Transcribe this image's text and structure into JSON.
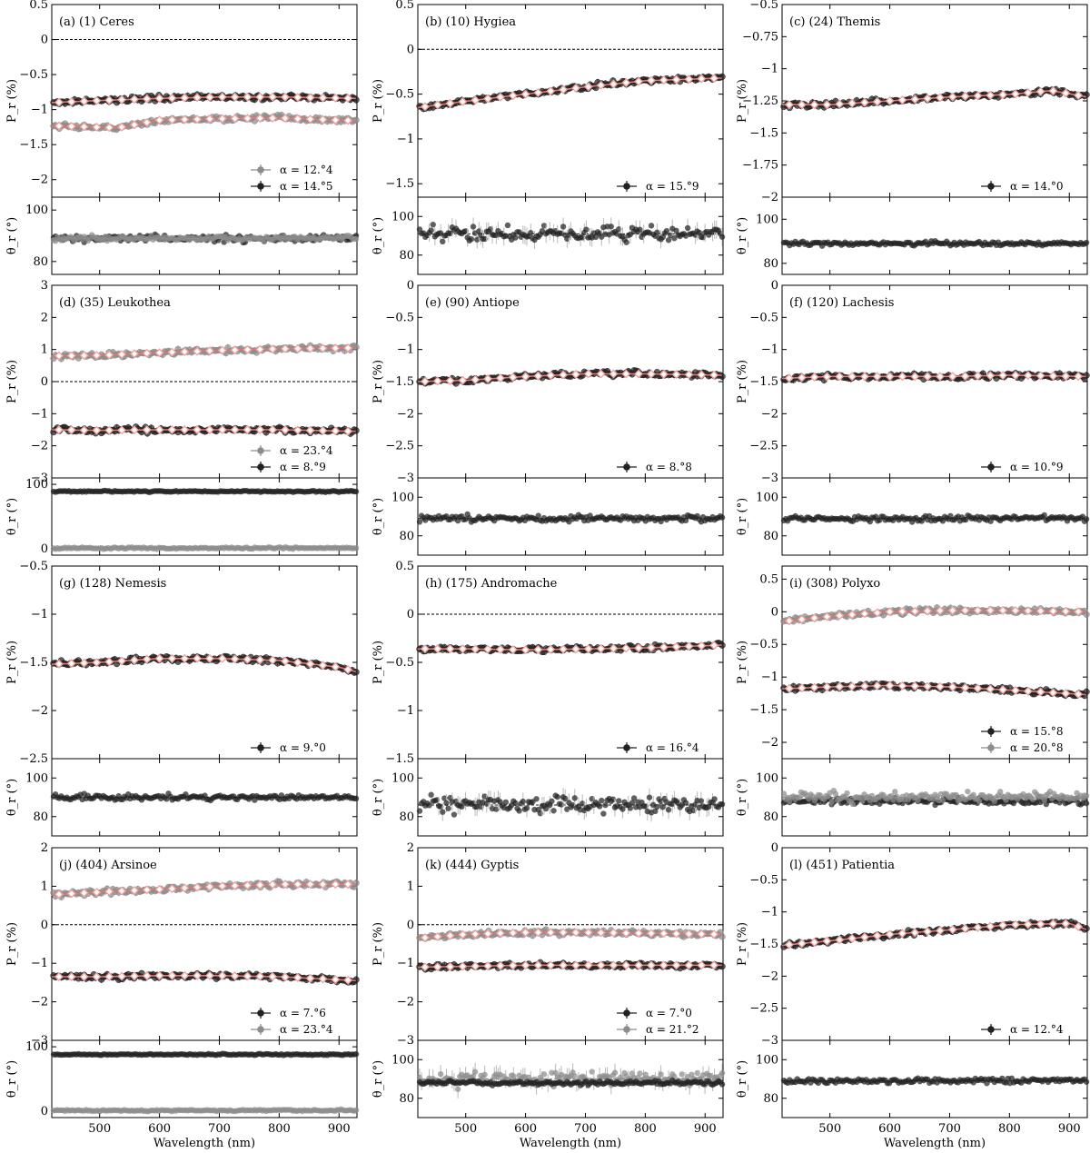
{
  "figure": {
    "xlabel": "Wavelength (nm)",
    "x_ticks": [
      500,
      600,
      700,
      800,
      900
    ],
    "xlim": [
      420,
      930
    ],
    "pr_label": "P_r (%)",
    "theta_label": "θ_r (°)"
  },
  "colors": {
    "black_series": "#222222",
    "gray_series": "#8c8c8c",
    "fit_line": "#e8736c",
    "marker": "#f4a49e"
  },
  "chart_data": [
    {
      "type": "scatter",
      "label": "(a) (1) Ceres",
      "ylim": [
        -2.25,
        0.5
      ],
      "yticks": [
        0.5,
        0.0,
        -0.5,
        -1.0,
        -1.5,
        -2.0
      ],
      "zero_line": true,
      "series": [
        {
          "name": "α = 12.°4",
          "color": "gray",
          "trend": {
            "x": [
              420,
              530,
              600,
              700,
              800,
              930
            ],
            "y": [
              -1.23,
              -1.26,
              -1.15,
              -1.13,
              -1.12,
              -1.16
            ]
          }
        },
        {
          "name": "α = 14.°5",
          "color": "black",
          "trend": {
            "x": [
              420,
              500,
              600,
              700,
              800,
              930
            ],
            "y": [
              -0.9,
              -0.87,
              -0.84,
              -0.82,
              -0.82,
              -0.84
            ]
          }
        }
      ],
      "theta": {
        "ylim": [
          75,
          105
        ],
        "yticks": [
          100,
          80
        ],
        "series": [
          {
            "color": "black",
            "mean": 89,
            "scatter": 1.2
          },
          {
            "color": "gray",
            "mean": 89,
            "scatter": 1.0
          }
        ]
      }
    },
    {
      "type": "scatter",
      "label": "(b) (10) Hygiea",
      "ylim": [
        -1.65,
        0.5
      ],
      "yticks": [
        0.5,
        0.0,
        -0.5,
        -1.0,
        -1.5
      ],
      "zero_line": true,
      "series": [
        {
          "name": "α = 15.°9",
          "color": "black",
          "trend": {
            "x": [
              420,
              500,
              600,
              700,
              800,
              930
            ],
            "y": [
              -0.65,
              -0.58,
              -0.5,
              -0.42,
              -0.35,
              -0.32
            ]
          }
        }
      ],
      "theta": {
        "ylim": [
          70,
          110
        ],
        "yticks": [
          100,
          80
        ],
        "series": [
          {
            "color": "black",
            "mean": 91,
            "scatter": 3.5
          }
        ]
      }
    },
    {
      "type": "scatter",
      "label": "(c) (24) Themis",
      "ylim": [
        -2.0,
        -0.5
      ],
      "yticks": [
        -0.5,
        -0.75,
        -1.0,
        -1.25,
        -1.5,
        -1.75,
        -2.0
      ],
      "zero_line": false,
      "series": [
        {
          "name": "α = 14.°0",
          "color": "black",
          "trend": {
            "x": [
              420,
              500,
              600,
              700,
              800,
              870,
              930
            ],
            "y": [
              -1.28,
              -1.28,
              -1.25,
              -1.22,
              -1.2,
              -1.17,
              -1.22
            ]
          }
        }
      ],
      "theta": {
        "ylim": [
          75,
          110
        ],
        "yticks": [
          100,
          80
        ],
        "series": [
          {
            "color": "black",
            "mean": 89,
            "scatter": 0.8
          }
        ]
      }
    },
    {
      "type": "scatter",
      "label": "(d) (35) Leukothea",
      "ylim": [
        -3.0,
        3.0
      ],
      "yticks": [
        3,
        2,
        1,
        0,
        -1,
        -2,
        -3
      ],
      "zero_line": true,
      "series": [
        {
          "name": "α = 23.°4",
          "color": "gray",
          "trend": {
            "x": [
              420,
              500,
              600,
              700,
              800,
              930
            ],
            "y": [
              0.8,
              0.82,
              0.9,
              0.97,
              1.02,
              1.05
            ]
          }
        },
        {
          "name": "α = 8.°9",
          "color": "black",
          "trend": {
            "x": [
              420,
              500,
              600,
              700,
              800,
              930
            ],
            "y": [
              -1.5,
              -1.52,
              -1.5,
              -1.5,
              -1.5,
              -1.55
            ]
          }
        }
      ],
      "theta": {
        "ylim": [
          -10,
          110
        ],
        "yticks": [
          100,
          0
        ],
        "series": [
          {
            "color": "black",
            "mean": 89,
            "scatter": 1.0
          },
          {
            "color": "gray",
            "mean": 1,
            "scatter": 1.2
          }
        ]
      }
    },
    {
      "type": "scatter",
      "label": "(e) (90) Antiope",
      "ylim": [
        -3.0,
        0.0
      ],
      "yticks": [
        0.0,
        -0.5,
        -1.0,
        -1.5,
        -2.0,
        -2.5,
        -3.0
      ],
      "zero_line": false,
      "series": [
        {
          "name": "α = 8.°8",
          "color": "black",
          "trend": {
            "x": [
              420,
              500,
              600,
              700,
              800,
              930
            ],
            "y": [
              -1.5,
              -1.48,
              -1.42,
              -1.38,
              -1.38,
              -1.4
            ]
          }
        }
      ],
      "theta": {
        "ylim": [
          70,
          110
        ],
        "yticks": [
          100,
          80
        ],
        "series": [
          {
            "color": "black",
            "mean": 89,
            "scatter": 1.5
          }
        ]
      }
    },
    {
      "type": "scatter",
      "label": "(f) (120) Lachesis",
      "ylim": [
        -3.0,
        0.0
      ],
      "yticks": [
        0.0,
        -0.5,
        -1.0,
        -1.5,
        -2.0,
        -2.5,
        -3.0
      ],
      "zero_line": false,
      "series": [
        {
          "name": "α = 10.°9",
          "color": "black",
          "trend": {
            "x": [
              420,
              500,
              600,
              700,
              800,
              930
            ],
            "y": [
              -1.45,
              -1.42,
              -1.42,
              -1.42,
              -1.4,
              -1.42
            ]
          }
        }
      ],
      "theta": {
        "ylim": [
          70,
          110
        ],
        "yticks": [
          100,
          80
        ],
        "series": [
          {
            "color": "black",
            "mean": 89,
            "scatter": 1.3
          }
        ]
      }
    },
    {
      "type": "scatter",
      "label": "(g) (128) Nemesis",
      "ylim": [
        -2.5,
        -0.5
      ],
      "yticks": [
        -0.5,
        -1.0,
        -1.5,
        -2.0,
        -2.5
      ],
      "zero_line": false,
      "series": [
        {
          "name": "α = 9.°0",
          "color": "black",
          "trend": {
            "x": [
              420,
              500,
              600,
              700,
              800,
              900,
              930
            ],
            "y": [
              -1.52,
              -1.5,
              -1.46,
              -1.46,
              -1.48,
              -1.55,
              -1.6
            ]
          }
        }
      ],
      "theta": {
        "ylim": [
          70,
          110
        ],
        "yticks": [
          100,
          80
        ],
        "series": [
          {
            "color": "black",
            "mean": 90,
            "scatter": 1.3
          }
        ]
      }
    },
    {
      "type": "scatter",
      "label": "(h) (175) Andromache",
      "ylim": [
        -1.5,
        0.5
      ],
      "yticks": [
        0.5,
        0.0,
        -0.5,
        -1.0,
        -1.5
      ],
      "zero_line": true,
      "series": [
        {
          "name": "α = 16.°4",
          "color": "black",
          "trend": {
            "x": [
              420,
              500,
              600,
              700,
              800,
              930
            ],
            "y": [
              -0.36,
              -0.36,
              -0.37,
              -0.36,
              -0.35,
              -0.32
            ]
          }
        }
      ],
      "theta": {
        "ylim": [
          70,
          110
        ],
        "yticks": [
          100,
          80
        ],
        "series": [
          {
            "color": "black",
            "mean": 86,
            "scatter": 3.5
          }
        ]
      }
    },
    {
      "type": "scatter",
      "label": "(i) (308) Polyxo",
      "ylim": [
        -2.25,
        0.7
      ],
      "yticks": [
        0.5,
        0.0,
        -0.5,
        -1.0,
        -1.5,
        -2.0
      ],
      "zero_line": false,
      "series": [
        {
          "name": "α = 15.°8",
          "color": "black",
          "trend": {
            "x": [
              420,
              500,
              600,
              700,
              800,
              930
            ],
            "y": [
              -1.18,
              -1.15,
              -1.13,
              -1.15,
              -1.2,
              -1.27
            ]
          }
        },
        {
          "name": "α = 20.°8",
          "color": "gray",
          "trend": {
            "x": [
              420,
              500,
              600,
              700,
              800,
              930
            ],
            "y": [
              -0.15,
              -0.07,
              0.0,
              0.02,
              0.02,
              0.0
            ]
          }
        }
      ],
      "theta": {
        "ylim": [
          70,
          110
        ],
        "yticks": [
          100,
          80
        ],
        "series": [
          {
            "color": "black",
            "mean": 88,
            "scatter": 1.5
          },
          {
            "color": "gray",
            "mean": 90,
            "scatter": 2.5
          }
        ]
      }
    },
    {
      "type": "scatter",
      "label": "(j) (404) Arsinoe",
      "ylim": [
        -3.0,
        2.0
      ],
      "yticks": [
        2,
        1,
        0,
        -1,
        -2,
        -3
      ],
      "zero_line": true,
      "series": [
        {
          "name": "α = 7.°6",
          "color": "black",
          "trend": {
            "x": [
              420,
              500,
              600,
              700,
              800,
              930
            ],
            "y": [
              -1.35,
              -1.35,
              -1.32,
              -1.32,
              -1.35,
              -1.45
            ]
          }
        },
        {
          "name": "α = 23.°4",
          "color": "gray",
          "trend": {
            "x": [
              420,
              500,
              600,
              700,
              800,
              930
            ],
            "y": [
              0.78,
              0.85,
              0.92,
              1.0,
              1.05,
              1.05
            ]
          }
        }
      ],
      "theta": {
        "ylim": [
          -10,
          110
        ],
        "yticks": [
          100,
          0
        ],
        "series": [
          {
            "color": "black",
            "mean": 88,
            "scatter": 1.0
          },
          {
            "color": "gray",
            "mean": 1,
            "scatter": 1.2
          }
        ]
      }
    },
    {
      "type": "scatter",
      "label": "(k) (444) Gyptis",
      "ylim": [
        -3.0,
        2.0
      ],
      "yticks": [
        2,
        1,
        0,
        -1,
        -2,
        -3
      ],
      "zero_line": true,
      "series": [
        {
          "name": "α = 7.°0",
          "color": "black",
          "trend": {
            "x": [
              420,
              500,
              600,
              700,
              800,
              930
            ],
            "y": [
              -1.1,
              -1.08,
              -1.05,
              -1.05,
              -1.05,
              -1.05
            ]
          }
        },
        {
          "name": "α = 21.°2",
          "color": "gray",
          "trend": {
            "x": [
              420,
              500,
              600,
              700,
              800,
              930
            ],
            "y": [
              -0.35,
              -0.25,
              -0.2,
              -0.2,
              -0.22,
              -0.25
            ]
          }
        }
      ],
      "theta": {
        "ylim": [
          70,
          110
        ],
        "yticks": [
          100,
          80
        ],
        "series": [
          {
            "color": "gray",
            "mean": 90,
            "scatter": 3.5
          },
          {
            "color": "black",
            "mean": 88,
            "scatter": 1.0
          }
        ]
      }
    },
    {
      "type": "scatter",
      "label": "(l) (451) Patientia",
      "ylim": [
        -3.0,
        0.0
      ],
      "yticks": [
        0.0,
        -0.5,
        -1.0,
        -1.5,
        -2.0,
        -2.5,
        -3.0
      ],
      "zero_line": false,
      "series": [
        {
          "name": "α = 12.°4",
          "color": "black",
          "trend": {
            "x": [
              420,
              500,
              600,
              700,
              800,
              900,
              930
            ],
            "y": [
              -1.52,
              -1.45,
              -1.35,
              -1.28,
              -1.2,
              -1.18,
              -1.28
            ]
          }
        }
      ],
      "theta": {
        "ylim": [
          70,
          110
        ],
        "yticks": [
          100,
          80
        ],
        "series": [
          {
            "color": "black",
            "mean": 89,
            "scatter": 1.3
          }
        ]
      }
    }
  ]
}
